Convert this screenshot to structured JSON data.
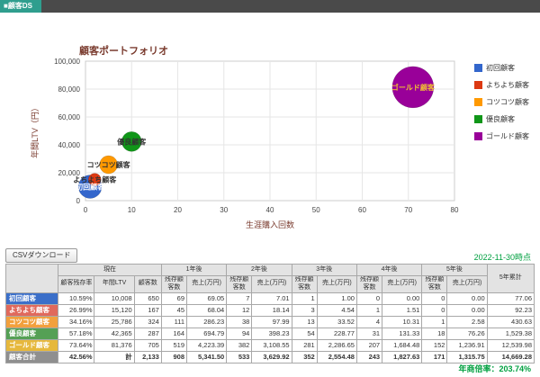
{
  "topbar": {
    "app_label": "■顧客DS"
  },
  "chart_data": {
    "type": "bubble",
    "title": "顧客ポートフォリオ",
    "xlabel": "生涯購入回数",
    "ylabel": "年間LTV（円）",
    "xlim": [
      0,
      80
    ],
    "ylim": [
      0,
      100000
    ],
    "x_ticks": [
      0,
      10,
      20,
      30,
      40,
      50,
      60,
      70,
      80
    ],
    "y_ticks": [
      0,
      20000,
      40000,
      60000,
      80000,
      100000
    ],
    "grid": true,
    "legend_position": "right",
    "series": [
      {
        "name": "初回顧客",
        "x": 1,
        "y": 10008,
        "size": 650,
        "radius_px": 13,
        "color": "#3366cc",
        "label_color": "#ffffff"
      },
      {
        "name": "よちよち顧客",
        "x": 2,
        "y": 15120,
        "size": 167,
        "radius_px": 7,
        "color": "#dc3912",
        "label_color": "#333333"
      },
      {
        "name": "コツコツ顧客",
        "x": 5,
        "y": 25786,
        "size": 324,
        "radius_px": 10,
        "color": "#ff9900",
        "label_color": "#333333"
      },
      {
        "name": "優良顧客",
        "x": 10,
        "y": 42365,
        "size": 287,
        "radius_px": 11,
        "color": "#109618",
        "label_color": "#333333"
      },
      {
        "name": "ゴールド顧客",
        "x": 71,
        "y": 81376,
        "size": 705,
        "radius_px": 23,
        "color": "#990099",
        "label_color": "#f1c232"
      }
    ]
  },
  "controls": {
    "csv_button": "CSVダウンロード",
    "as_of": "2022-11-30時点"
  },
  "table": {
    "corner_label": "",
    "groups": [
      {
        "label": "現在",
        "span": 3
      },
      {
        "label": "1年後",
        "span": 2
      },
      {
        "label": "2年後",
        "span": 2
      },
      {
        "label": "3年後",
        "span": 2
      },
      {
        "label": "4年後",
        "span": 2
      },
      {
        "label": "5年後",
        "span": 2
      },
      {
        "label": "5年累計",
        "span": 1,
        "rowspan": 2
      }
    ],
    "current_subheaders": [
      "顧客残存率",
      "年間LTV",
      "顧客数"
    ],
    "year_subheaders": [
      "残存顧客数",
      "売上(万円)"
    ],
    "rows": [
      {
        "label": "初回顧客",
        "bg": "#3b6fc9",
        "fg": "#ffffff",
        "total": false,
        "values": [
          "10.59%",
          "10,008",
          "650",
          "69",
          "69.05",
          "7",
          "7.01",
          "1",
          "1.00",
          "0",
          "0.00",
          "0",
          "0.00",
          "77.06"
        ]
      },
      {
        "label": "よちよち顧客",
        "bg": "#e0695c",
        "fg": "#ffffff",
        "total": false,
        "values": [
          "26.99%",
          "15,120",
          "167",
          "45",
          "68.04",
          "12",
          "18.14",
          "3",
          "4.54",
          "1",
          "1.51",
          "0",
          "0.00",
          "92.23"
        ]
      },
      {
        "label": "コツコツ顧客",
        "bg": "#f2a03d",
        "fg": "#ffffff",
        "total": false,
        "values": [
          "34.16%",
          "25,786",
          "324",
          "111",
          "286.23",
          "38",
          "97.99",
          "13",
          "33.52",
          "4",
          "10.31",
          "1",
          "2.58",
          "430.63"
        ]
      },
      {
        "label": "優良顧客",
        "bg": "#55a055",
        "fg": "#ffffff",
        "total": false,
        "values": [
          "57.18%",
          "42,365",
          "287",
          "164",
          "694.79",
          "94",
          "398.23",
          "54",
          "228.77",
          "31",
          "131.33",
          "18",
          "76.26",
          "1,529.38"
        ]
      },
      {
        "label": "ゴールド顧客",
        "bg": "#e6b83c",
        "fg": "#ffffff",
        "total": false,
        "values": [
          "73.64%",
          "81,376",
          "705",
          "519",
          "4,223.39",
          "382",
          "3,108.55",
          "281",
          "2,286.65",
          "207",
          "1,684.48",
          "152",
          "1,236.91",
          "12,539.98"
        ]
      },
      {
        "label": "顧客合計",
        "bg": "#8f8f8f",
        "fg": "#ffffff",
        "total": true,
        "values": [
          "42.56%",
          "計",
          "2,133",
          "908",
          "5,341.50",
          "533",
          "3,629.92",
          "352",
          "2,554.48",
          "243",
          "1,827.63",
          "171",
          "1,315.75",
          "14,669.28"
        ]
      }
    ]
  },
  "footer": {
    "note": "年商倍率：203.74%"
  }
}
